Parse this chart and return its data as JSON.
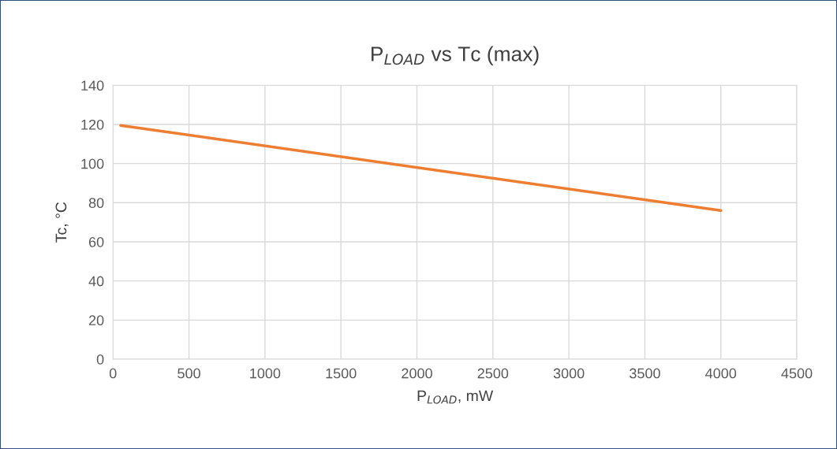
{
  "chart_data": {
    "type": "line",
    "title": "P$_{LOAD}$ vs Tc (max)",
    "xlabel": "P$_{LOAD}$, mW",
    "ylabel": "Tc, °C",
    "x": [
      50,
      4000
    ],
    "series": [
      {
        "color": "#ed7d31",
        "values": [
          119.5,
          76
        ]
      }
    ],
    "xlim": [
      0,
      4500
    ],
    "xticks": [
      0,
      500,
      1000,
      1500,
      2000,
      2500,
      3000,
      3500,
      4000,
      4500
    ],
    "ylim": [
      0,
      140
    ],
    "yticks": [
      0,
      20,
      40,
      60,
      80,
      100,
      120,
      140
    ],
    "grid": true,
    "legend": false,
    "marker": "none",
    "line_style": "solid"
  }
}
